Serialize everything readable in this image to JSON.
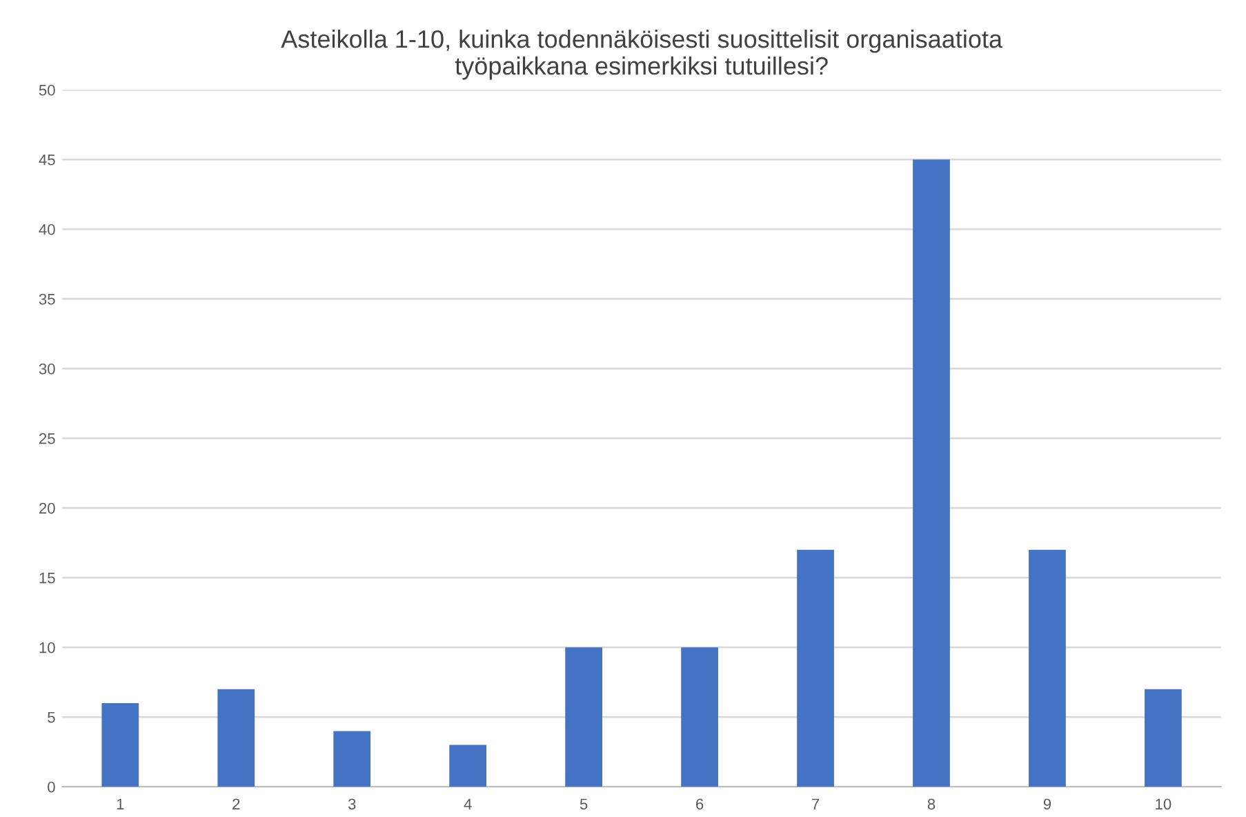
{
  "chart_data": {
    "type": "bar",
    "title": "Asteikolla 1-10, kuinka todennäköisesti suosittelisit organisaatiota\ntyöpaikkana esimerkiksi tutuillesi?",
    "categories": [
      "1",
      "2",
      "3",
      "4",
      "5",
      "6",
      "7",
      "8",
      "9",
      "10"
    ],
    "values": [
      6,
      7,
      4,
      3,
      10,
      10,
      17,
      45,
      17,
      7
    ],
    "color": "#4472c4",
    "ylim": [
      0,
      50
    ],
    "yticks": [
      0,
      5,
      10,
      15,
      20,
      25,
      30,
      35,
      40,
      45,
      50
    ],
    "grid": "y"
  }
}
